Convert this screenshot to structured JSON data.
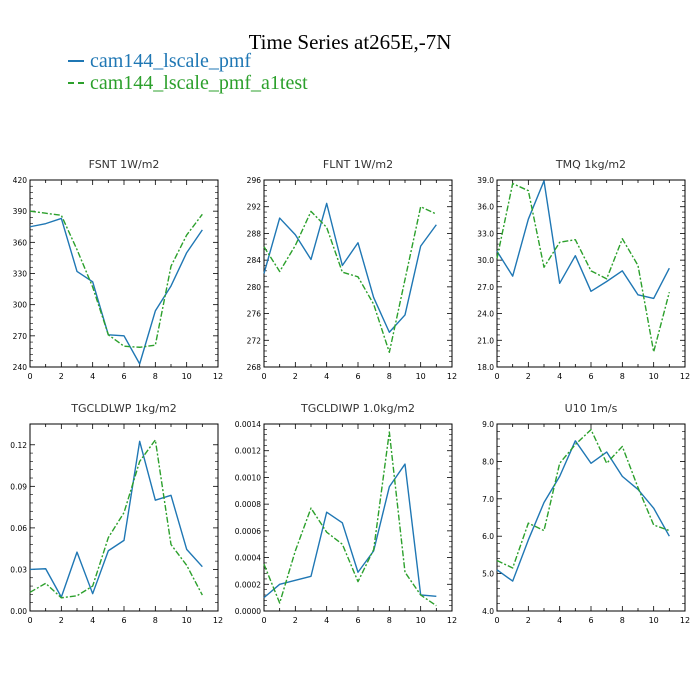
{
  "title": "Time Series at265E,-7N",
  "legend": [
    {
      "label": "cam144_lscale_pmf",
      "color": "#1f77b4",
      "dash": ""
    },
    {
      "label": "cam144_lscale_pmf_a1test",
      "color": "#2ca02c",
      "dash": "6,2,2,2"
    }
  ],
  "chart_data": [
    {
      "type": "line",
      "title": "FSNT   1W/m2",
      "x": [
        0,
        1,
        2,
        3,
        4,
        5,
        6,
        7,
        8,
        9,
        10,
        11
      ],
      "xlim": [
        0,
        12
      ],
      "xticks": [
        0,
        2,
        4,
        6,
        8,
        10,
        12
      ],
      "ylim": [
        240,
        420
      ],
      "yticks": [
        "240",
        "270",
        "300",
        "330",
        "360",
        "390",
        "420"
      ],
      "series": [
        {
          "values": [
            375,
            378,
            383,
            332,
            322,
            271,
            270,
            243,
            294,
            318,
            350,
            372
          ]
        },
        {
          "values": [
            390,
            388,
            386,
            353,
            317,
            271,
            260,
            259,
            261,
            337,
            367,
            387
          ]
        }
      ]
    },
    {
      "type": "line",
      "title": "FLNT   1W/m2",
      "x": [
        0,
        1,
        2,
        3,
        4,
        5,
        6,
        7,
        8,
        9,
        10,
        11
      ],
      "xlim": [
        0,
        12
      ],
      "xticks": [
        0,
        2,
        4,
        6,
        8,
        10,
        12
      ],
      "ylim": [
        268,
        296
      ],
      "yticks": [
        "268",
        "272",
        "276",
        "280",
        "284",
        "288",
        "292",
        "296"
      ],
      "series": [
        {
          "values": [
            282,
            290.3,
            287.8,
            284.1,
            292.5,
            283.2,
            286.6,
            278.4,
            273.2,
            275.8,
            286.1,
            289.3
          ]
        },
        {
          "values": [
            286,
            282.3,
            286.2,
            291.3,
            288.9,
            282.2,
            281.5,
            277.4,
            270.2,
            281.1,
            292,
            290.9
          ]
        }
      ]
    },
    {
      "type": "line",
      "title": "TMQ   1kg/m2",
      "x": [
        0,
        1,
        2,
        3,
        4,
        5,
        6,
        7,
        8,
        9,
        10,
        11
      ],
      "xlim": [
        0,
        12
      ],
      "xticks": [
        0,
        2,
        4,
        6,
        8,
        10,
        12
      ],
      "ylim": [
        18,
        39
      ],
      "yticks": [
        "18.0",
        "21.0",
        "24.0",
        "27.0",
        "30.0",
        "33.0",
        "36.0",
        "39.0"
      ],
      "series": [
        {
          "values": [
            31,
            28.2,
            34.6,
            38.9,
            27.4,
            30.5,
            26.5,
            27.6,
            28.8,
            26.1,
            25.7,
            29.1
          ]
        },
        {
          "values": [
            30.2,
            38.6,
            37.8,
            29.2,
            32,
            32.3,
            28.8,
            27.9,
            32.4,
            29.4,
            19.7,
            26.4
          ]
        }
      ]
    },
    {
      "type": "line",
      "title": "TGCLDLWP   1kg/m2",
      "x": [
        0,
        1,
        2,
        3,
        4,
        5,
        6,
        7,
        8,
        9,
        10,
        11
      ],
      "xlim": [
        0,
        12
      ],
      "xticks": [
        0,
        2,
        4,
        6,
        8,
        10,
        12
      ],
      "ylim": [
        0,
        0.135
      ],
      "yticks": [
        "0.00",
        "0.03",
        "0.06",
        "0.09",
        "0.12"
      ],
      "series": [
        {
          "values": [
            0.03,
            0.0305,
            0.01,
            0.0425,
            0.0125,
            0.0435,
            0.051,
            0.1225,
            0.08,
            0.0835,
            0.0445,
            0.032
          ]
        },
        {
          "values": [
            0.0135,
            0.02,
            0.0095,
            0.011,
            0.018,
            0.053,
            0.071,
            0.108,
            0.1235,
            0.048,
            0.033,
            0.0115
          ]
        }
      ]
    },
    {
      "type": "line",
      "title": "TGCLDIWP   1.0kg/m2",
      "x": [
        0,
        1,
        2,
        3,
        4,
        5,
        6,
        7,
        8,
        9,
        10,
        11
      ],
      "xlim": [
        0,
        12
      ],
      "xticks": [
        0,
        2,
        4,
        6,
        8,
        10,
        12
      ],
      "ylim": [
        0,
        0.0014
      ],
      "yticks": [
        "0.0000",
        "0.0002",
        "0.0004",
        "0.0006",
        "0.0008",
        "0.0010",
        "0.0012",
        "0.0014"
      ],
      "series": [
        {
          "values": [
            0.0001,
            0.0002,
            0.00023,
            0.00026,
            0.00074,
            0.00066,
            0.00029,
            0.00045,
            0.00093,
            0.0011,
            0.00012,
            0.00011
          ]
        },
        {
          "values": [
            0.00035,
            6e-05,
            0.00045,
            0.00077,
            0.00059,
            0.0005,
            0.00022,
            0.00046,
            0.00134,
            0.00029,
            0.00012,
            4e-05
          ]
        }
      ]
    },
    {
      "type": "line",
      "title": "U10   1m/s",
      "x": [
        0,
        1,
        2,
        3,
        4,
        5,
        6,
        7,
        8,
        9,
        10,
        11
      ],
      "xlim": [
        0,
        12
      ],
      "xticks": [
        0,
        2,
        4,
        6,
        8,
        10,
        12
      ],
      "ylim": [
        4,
        9
      ],
      "yticks": [
        "4.0",
        "5.0",
        "6.0",
        "7.0",
        "8.0",
        "9.0"
      ],
      "series": [
        {
          "values": [
            5.1,
            4.8,
            5.9,
            6.9,
            7.6,
            8.55,
            7.95,
            8.25,
            7.6,
            7.25,
            6.75,
            6.0
          ]
        },
        {
          "values": [
            5.35,
            5.15,
            6.35,
            6.15,
            7.95,
            8.45,
            8.85,
            7.95,
            8.4,
            7.3,
            6.3,
            6.15
          ]
        }
      ]
    }
  ]
}
